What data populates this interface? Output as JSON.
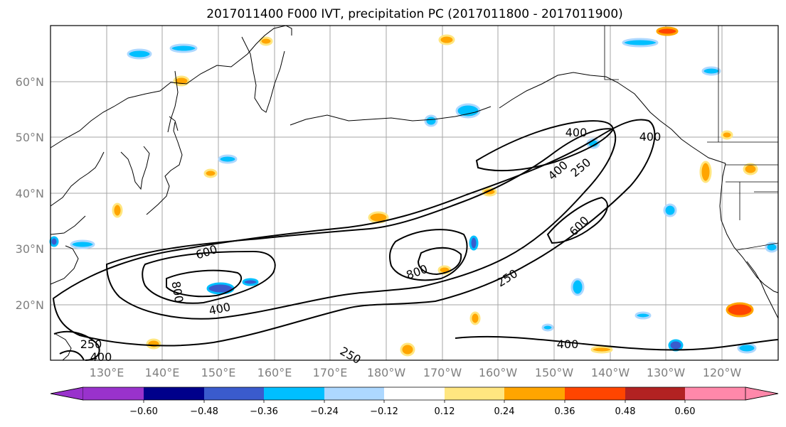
{
  "title": "2017011400 F000 IVT, precipitation PC (2017011800 - 2017011900)",
  "map": {
    "lat_labels": [
      "60°N",
      "50°N",
      "40°N",
      "30°N",
      "20°N"
    ],
    "lon_labels": [
      "130°E",
      "140°E",
      "150°E",
      "160°E",
      "170°E",
      "180°W",
      "170°W",
      "160°W",
      "150°W",
      "140°W",
      "130°W",
      "120°W"
    ],
    "contour_labels": [
      {
        "text": "600"
      },
      {
        "text": "800"
      },
      {
        "text": "400"
      },
      {
        "text": "800"
      },
      {
        "text": "250"
      },
      {
        "text": "250"
      },
      {
        "text": "400"
      },
      {
        "text": "400"
      },
      {
        "text": "250"
      },
      {
        "text": "400"
      },
      {
        "text": "600"
      },
      {
        "text": "400"
      },
      {
        "text": "400"
      },
      {
        "text": "250"
      }
    ]
  },
  "colorbar": {
    "tick_labels": [
      "−0.60",
      "−0.48",
      "−0.36",
      "−0.24",
      "−0.12",
      "0.12",
      "0.24",
      "0.36",
      "0.48",
      "0.60"
    ],
    "colors": [
      "#9932cc",
      "#00008b",
      "#3a5bcd",
      "#00bfff",
      "#add8ff",
      "#ffffff",
      "#ffe680",
      "#ffa500",
      "#ff4500",
      "#b22222",
      "#ff88aa"
    ]
  }
}
